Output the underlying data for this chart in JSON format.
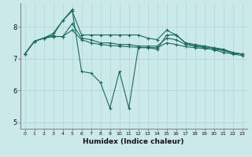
{
  "xlabel": "Humidex (Indice chaleur)",
  "bg_color": "#cce9e9",
  "grid_color": "#aed4d4",
  "line_color": "#1a6b5a",
  "xlim": [
    -0.5,
    23.5
  ],
  "ylim": [
    4.8,
    8.75
  ],
  "yticks": [
    5,
    6,
    7,
    8
  ],
  "xticks": [
    0,
    1,
    2,
    3,
    4,
    5,
    6,
    7,
    8,
    9,
    10,
    11,
    12,
    13,
    14,
    15,
    16,
    17,
    18,
    19,
    20,
    21,
    22,
    23
  ],
  "series1": [
    7.15,
    7.55,
    7.65,
    7.75,
    8.2,
    8.5,
    7.75,
    7.75,
    7.75,
    7.75,
    7.75,
    7.75,
    7.75,
    7.65,
    7.6,
    7.9,
    7.75,
    7.5,
    7.45,
    7.4,
    7.35,
    7.3,
    7.2,
    7.15
  ],
  "series2": [
    7.15,
    7.55,
    7.65,
    7.7,
    7.7,
    8.1,
    7.65,
    7.6,
    7.5,
    7.5,
    7.45,
    7.45,
    7.4,
    7.4,
    7.4,
    7.65,
    7.6,
    7.45,
    7.4,
    7.38,
    7.33,
    7.28,
    7.18,
    7.15
  ],
  "series3": [
    7.15,
    7.55,
    7.65,
    7.7,
    7.7,
    7.9,
    7.6,
    7.5,
    7.45,
    7.42,
    7.4,
    7.38,
    7.36,
    7.35,
    7.35,
    7.5,
    7.45,
    7.38,
    7.35,
    7.32,
    7.3,
    7.26,
    7.18,
    7.15
  ],
  "series4": [
    7.15,
    7.55,
    7.65,
    7.8,
    8.2,
    8.55,
    6.6,
    6.55,
    6.25,
    5.45,
    6.6,
    5.45,
    7.35,
    7.35,
    7.3,
    7.75,
    7.75,
    7.5,
    7.4,
    7.35,
    7.28,
    7.2,
    7.15,
    7.1
  ]
}
